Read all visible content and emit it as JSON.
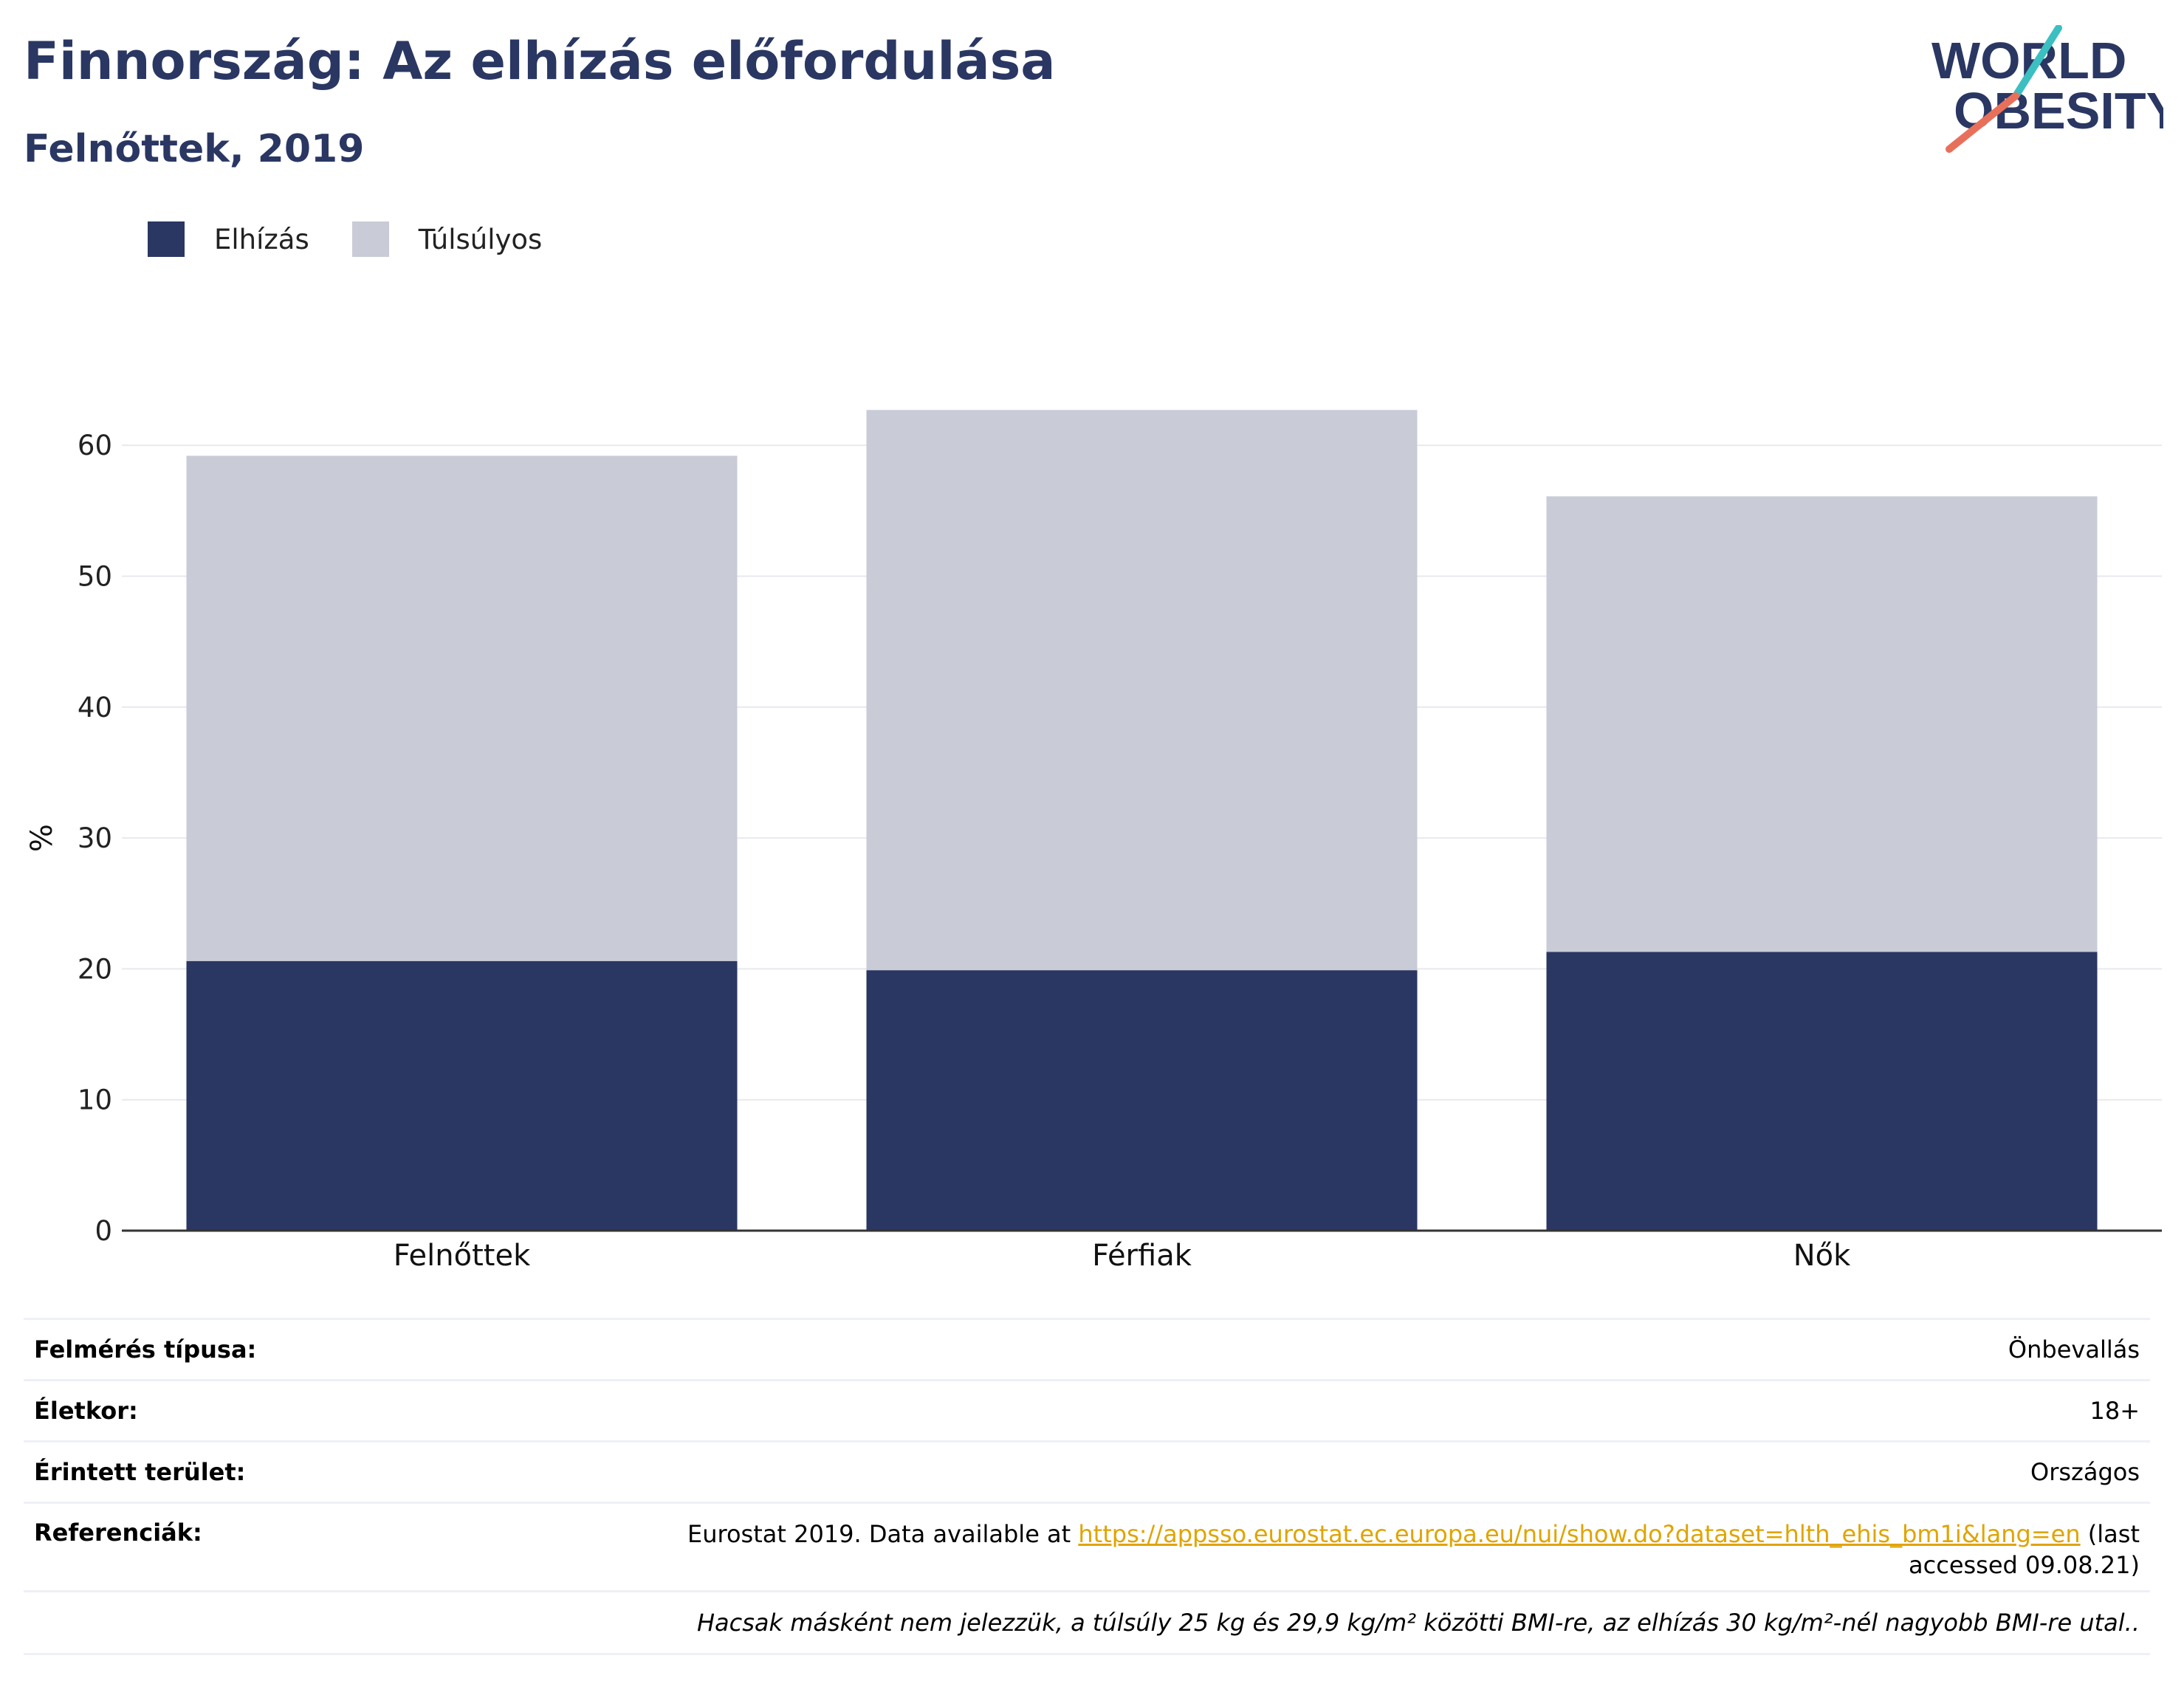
{
  "header": {
    "title": "Finnország: Az elhízás előfordulása",
    "subtitle": "Felnőttek, 2019"
  },
  "logo": {
    "line1": "WORLD",
    "line2": "OBESITY",
    "colors": {
      "text": "#2a3763",
      "slash_top": "#3bbfc1",
      "slash_bottom": "#e8705a"
    }
  },
  "legend": {
    "items": [
      {
        "label": "Elhízás",
        "color": "#2a3763"
      },
      {
        "label": "Túlsúlyos",
        "color": "#c9cbd7"
      }
    ]
  },
  "chart_data": {
    "type": "bar",
    "stacked": true,
    "categories": [
      "Felnőttek",
      "Férfiak",
      "Nők"
    ],
    "series": [
      {
        "name": "Elhízás",
        "values": [
          20.6,
          19.9,
          21.3
        ],
        "color": "#2a3763"
      },
      {
        "name": "Túlsúlyos",
        "values": [
          38.6,
          42.8,
          34.8
        ],
        "color": "#c9cbd7"
      }
    ],
    "ylabel": "%",
    "yticks": [
      0,
      10,
      20,
      30,
      40,
      50,
      60
    ],
    "ylim": [
      0,
      65
    ],
    "grid": true,
    "legend_position": "top-left"
  },
  "info": {
    "survey_type": {
      "label": "Felmérés típusa:",
      "value": "Önbevallás"
    },
    "age": {
      "label": "Életkor:",
      "value": "18+"
    },
    "area": {
      "label": "Érintett terület:",
      "value": "Országos"
    },
    "references": {
      "label": "Referenciák:",
      "prefix": "Eurostat 2019. Data available at ",
      "link": "https://appsso.eurostat.ec.europa.eu/nui/show.do?dataset=hlth_ehis_bm1i&lang=en",
      "suffix": " (last accessed 09.08.21)"
    },
    "note": "Hacsak másként nem jelezzük, a túlsúly 25 kg és 29,9 kg/m² közötti BMI-re, az elhízás 30 kg/m²-nél nagyobb BMI-re utal.."
  }
}
